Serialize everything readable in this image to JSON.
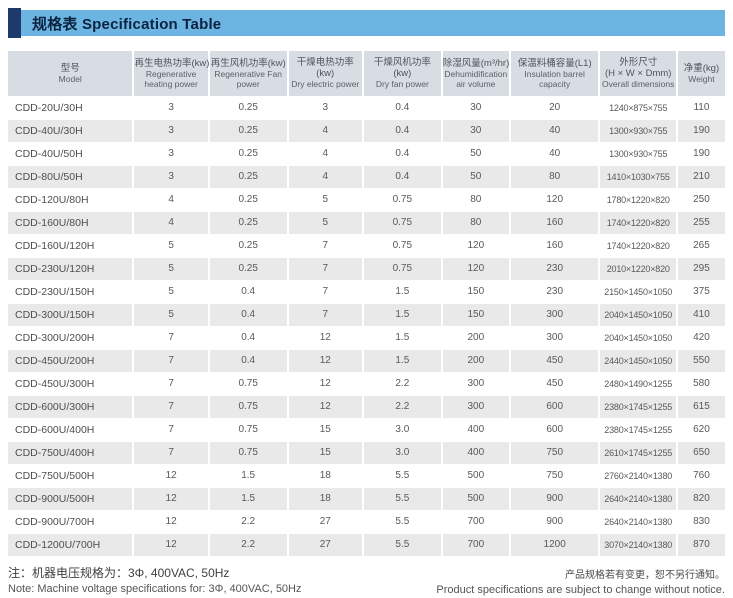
{
  "page": {
    "title": "规格表 Specification Table"
  },
  "colors": {
    "title_band": "#6cb5e2",
    "title_accent": "#1e3a6d",
    "header_bg": "#d8dce3",
    "row_alt": "#e9e9e9"
  },
  "table": {
    "columns": [
      {
        "key": "model",
        "zh": "型号",
        "en": "Model"
      },
      {
        "key": "regen_heat",
        "zh": "再生电热功率(kw)",
        "en": "Regenerative heating power"
      },
      {
        "key": "regen_fan",
        "zh": "再生风机功率(kw)",
        "en": "Regenerative Fan power"
      },
      {
        "key": "dry_electric",
        "zh": "干燥电热功率\n(kw)",
        "en": "Dry electric power"
      },
      {
        "key": "dry_fan",
        "zh": "干燥风机功率\n(kw)",
        "en": "Dry fan power"
      },
      {
        "key": "dehumid",
        "zh": "除湿风量(m³/hr)",
        "en": "Dehumidification air volume"
      },
      {
        "key": "barrel",
        "zh": "保温料桶容量(L1)",
        "en": "Insulation barrel capacity"
      },
      {
        "key": "dims",
        "zh": "外形尺寸\n(H × W × Dmm)",
        "en": "Overall dimensions"
      },
      {
        "key": "weight",
        "zh": "净重(kg)",
        "en": "Weight"
      }
    ],
    "rows": [
      [
        "CDD-20U/30H",
        "3",
        "0.25",
        "3",
        "0.4",
        "30",
        "20",
        "1240×875×755",
        "110"
      ],
      [
        "CDD-40U/30H",
        "3",
        "0.25",
        "4",
        "0.4",
        "30",
        "40",
        "1300×930×755",
        "190"
      ],
      [
        "CDD-40U/50H",
        "3",
        "0.25",
        "4",
        "0.4",
        "50",
        "40",
        "1300×930×755",
        "190"
      ],
      [
        "CDD-80U/50H",
        "3",
        "0.25",
        "4",
        "0.4",
        "50",
        "80",
        "1410×1030×755",
        "210"
      ],
      [
        "CDD-120U/80H",
        "4",
        "0.25",
        "5",
        "0.75",
        "80",
        "120",
        "1780×1220×820",
        "250"
      ],
      [
        "CDD-160U/80H",
        "4",
        "0.25",
        "5",
        "0.75",
        "80",
        "160",
        "1740×1220×820",
        "255"
      ],
      [
        "CDD-160U/120H",
        "5",
        "0.25",
        "7",
        "0.75",
        "120",
        "160",
        "1740×1220×820",
        "265"
      ],
      [
        "CDD-230U/120H",
        "5",
        "0.25",
        "7",
        "0.75",
        "120",
        "230",
        "2010×1220×820",
        "295"
      ],
      [
        "CDD-230U/150H",
        "5",
        "0.4",
        "7",
        "1.5",
        "150",
        "230",
        "2150×1450×1050",
        "375"
      ],
      [
        "CDD-300U/150H",
        "5",
        "0.4",
        "7",
        "1.5",
        "150",
        "300",
        "2040×1450×1050",
        "410"
      ],
      [
        "CDD-300U/200H",
        "7",
        "0.4",
        "12",
        "1.5",
        "200",
        "300",
        "2040×1450×1050",
        "420"
      ],
      [
        "CDD-450U/200H",
        "7",
        "0.4",
        "12",
        "1.5",
        "200",
        "450",
        "2440×1450×1050",
        "550"
      ],
      [
        "CDD-450U/300H",
        "7",
        "0.75",
        "12",
        "2.2",
        "300",
        "450",
        "2480×1490×1255",
        "580"
      ],
      [
        "CDD-600U/300H",
        "7",
        "0.75",
        "12",
        "2.2",
        "300",
        "600",
        "2380×1745×1255",
        "615"
      ],
      [
        "CDD-600U/400H",
        "7",
        "0.75",
        "15",
        "3.0",
        "400",
        "600",
        "2380×1745×1255",
        "620"
      ],
      [
        "CDD-750U/400H",
        "7",
        "0.75",
        "15",
        "3.0",
        "400",
        "750",
        "2610×1745×1255",
        "650"
      ],
      [
        "CDD-750U/500H",
        "12",
        "1.5",
        "18",
        "5.5",
        "500",
        "750",
        "2760×2140×1380",
        "760"
      ],
      [
        "CDD-900U/500H",
        "12",
        "1.5",
        "18",
        "5.5",
        "500",
        "900",
        "2640×2140×1380",
        "820"
      ],
      [
        "CDD-900U/700H",
        "12",
        "2.2",
        "27",
        "5.5",
        "700",
        "900",
        "2640×2140×1380",
        "830"
      ],
      [
        "CDD-1200U/700H",
        "12",
        "2.2",
        "27",
        "5.5",
        "700",
        "1200",
        "3070×2140×1380",
        "870"
      ]
    ]
  },
  "notes": {
    "left_zh": "注：机器电压规格为：3Φ, 400VAC, 50Hz",
    "left_en": "Note: Machine voltage specifications for: 3Φ, 400VAC, 50Hz",
    "right_zh": "产品规格若有变更，恕不另行通知。",
    "right_en": "Product specifications are subject to change without notice."
  }
}
